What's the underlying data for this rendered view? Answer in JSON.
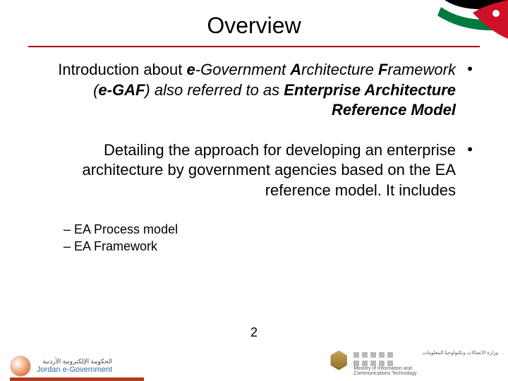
{
  "title": "Overview",
  "ruleColor": "#a00000",
  "bullets": [
    {
      "segments": [
        {
          "t": "Introduction about ",
          "cls": ""
        },
        {
          "t": "e",
          "cls": "bolditalic"
        },
        {
          "t": "-Government ",
          "cls": "italic"
        },
        {
          "t": "A",
          "cls": "bolditalic"
        },
        {
          "t": "rchitecture ",
          "cls": "italic"
        },
        {
          "t": "F",
          "cls": "bolditalic"
        },
        {
          "t": "ramework (",
          "cls": "italic"
        },
        {
          "t": "e-GAF",
          "cls": "bolditalic"
        },
        {
          "t": ") also referred to as ",
          "cls": "italic"
        },
        {
          "t": "Enterprise Architecture Reference Model",
          "cls": "bolditalic"
        }
      ]
    },
    {
      "segments": [
        {
          "t": "Detailing the approach for developing an enterprise architecture by government agencies based on the EA reference model. It includes",
          "cls": ""
        }
      ],
      "subs": [
        "EA Process model",
        "EA Framework"
      ]
    }
  ],
  "pageNumber": "2",
  "footer": {
    "left": {
      "arabic": "الحكومة الإلكترونية الأردنية",
      "english": "Jordan e-Government"
    },
    "right": {
      "arabic": "وزارة الاتصالات وتكنولوجيا المعلومات",
      "englishLine1": "Ministry of Information and",
      "englishLine2": "Communications Technology"
    }
  },
  "flag": {
    "black": "#000000",
    "white": "#ffffff",
    "green": "#007a3d",
    "red": "#ce1126",
    "star": "#ffffff"
  }
}
